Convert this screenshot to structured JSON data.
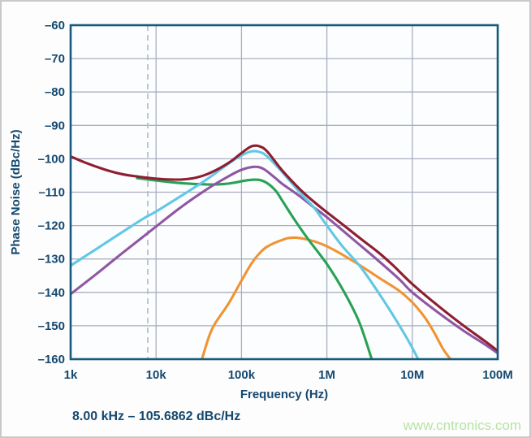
{
  "page": {
    "watermark": "www.cntronics.com"
  },
  "style": {
    "text_color": "#14486f",
    "border_color": "#15597c",
    "grid_color": "#a9afbe",
    "marker_line_color": "#b4b8bf",
    "watermark_color": "#b7e3a4",
    "plot_background": "#fcfdfe"
  },
  "chart_data": {
    "type": "line",
    "title": "",
    "xlabel": "Frequency (Hz)",
    "ylabel": "Phase Noise (dBc/Hz)",
    "x_scale": "log",
    "xlim": [
      1000,
      100000000
    ],
    "ylim": [
      -160,
      -60
    ],
    "grid": true,
    "legend": "none",
    "x_ticks": [
      {
        "value": 1000,
        "label": "1k"
      },
      {
        "value": 10000,
        "label": "10k"
      },
      {
        "value": 100000,
        "label": "100k"
      },
      {
        "value": 1000000,
        "label": "1M"
      },
      {
        "value": 10000000,
        "label": "10M"
      },
      {
        "value": 100000000,
        "label": "100M"
      }
    ],
    "y_ticks": [
      {
        "value": -60,
        "label": "–60"
      },
      {
        "value": -70,
        "label": "–70"
      },
      {
        "value": -80,
        "label": "–80"
      },
      {
        "value": -90,
        "label": "–90"
      },
      {
        "value": -100,
        "label": "–100"
      },
      {
        "value": -110,
        "label": "–110"
      },
      {
        "value": -120,
        "label": "–120"
      },
      {
        "value": -130,
        "label": "–130"
      },
      {
        "value": -140,
        "label": "–140"
      },
      {
        "value": -150,
        "label": "–150"
      },
      {
        "value": -160,
        "label": "–160"
      }
    ],
    "marker": {
      "frequency_hz": 8000,
      "label": "8.00 kHz – 105.6862 dBc/Hz"
    },
    "series": [
      {
        "name": "orange",
        "color": "#f09433",
        "points": [
          [
            34000,
            -160.5
          ],
          [
            42000,
            -153
          ],
          [
            50000,
            -149
          ],
          [
            70000,
            -143.5
          ],
          [
            100000,
            -136.5
          ],
          [
            130000,
            -131.5
          ],
          [
            160000,
            -128.5
          ],
          [
            200000,
            -126.3
          ],
          [
            300000,
            -124.3
          ],
          [
            400000,
            -123.6
          ],
          [
            600000,
            -124.2
          ],
          [
            1000000,
            -126.2
          ],
          [
            2000000,
            -130.5
          ],
          [
            4000000,
            -135.5
          ],
          [
            7000000,
            -139.5
          ],
          [
            10000000,
            -143
          ],
          [
            14000000,
            -147.5
          ],
          [
            18000000,
            -152
          ],
          [
            23000000,
            -157
          ],
          [
            29000000,
            -160.5
          ]
        ]
      },
      {
        "name": "green",
        "color": "#28a155",
        "points": [
          [
            6000,
            -105.8
          ],
          [
            10000,
            -106.5
          ],
          [
            20000,
            -107.3
          ],
          [
            40000,
            -107.7
          ],
          [
            60000,
            -107.6
          ],
          [
            80000,
            -107.2
          ],
          [
            120000,
            -106.4
          ],
          [
            160000,
            -106.3
          ],
          [
            200000,
            -107.3
          ],
          [
            250000,
            -109.5
          ],
          [
            300000,
            -112.5
          ],
          [
            400000,
            -117.5
          ],
          [
            600000,
            -124
          ],
          [
            1000000,
            -131.5
          ],
          [
            1600000,
            -140
          ],
          [
            2400000,
            -149
          ],
          [
            3400000,
            -160.5
          ]
        ]
      },
      {
        "name": "purple",
        "color": "#8f57a3",
        "points": [
          [
            1000,
            -140.5
          ],
          [
            2000,
            -134.5
          ],
          [
            4000,
            -128.3
          ],
          [
            7000,
            -123.4
          ],
          [
            10000,
            -120.3
          ],
          [
            20000,
            -114.3
          ],
          [
            40000,
            -109
          ],
          [
            70000,
            -105.3
          ],
          [
            100000,
            -103.3
          ],
          [
            140000,
            -102.4
          ],
          [
            180000,
            -103
          ],
          [
            250000,
            -105.8
          ],
          [
            300000,
            -107.5
          ],
          [
            500000,
            -111.5
          ],
          [
            700000,
            -114.5
          ],
          [
            1000000,
            -117.5
          ],
          [
            2000000,
            -124
          ],
          [
            4000000,
            -130.5
          ],
          [
            7000000,
            -136
          ],
          [
            10000000,
            -140
          ],
          [
            20000000,
            -146
          ],
          [
            40000000,
            -151.5
          ],
          [
            70000000,
            -155.5
          ],
          [
            100000000,
            -158.2
          ]
        ]
      },
      {
        "name": "light_blue",
        "color": "#62c7e5",
        "points": [
          [
            1000,
            -132
          ],
          [
            2000,
            -127
          ],
          [
            4000,
            -122
          ],
          [
            7000,
            -118
          ],
          [
            10000,
            -115.8
          ],
          [
            20000,
            -111
          ],
          [
            40000,
            -106
          ],
          [
            70000,
            -101.5
          ],
          [
            100000,
            -99
          ],
          [
            130000,
            -97.8
          ],
          [
            160000,
            -97.9
          ],
          [
            200000,
            -99.3
          ],
          [
            300000,
            -104
          ],
          [
            500000,
            -110.5
          ],
          [
            700000,
            -114.5
          ],
          [
            1000000,
            -120
          ],
          [
            1500000,
            -126
          ],
          [
            2500000,
            -132.5
          ],
          [
            4000000,
            -140
          ],
          [
            6000000,
            -147
          ],
          [
            9000000,
            -154.5
          ],
          [
            12000000,
            -160.5
          ]
        ]
      },
      {
        "name": "dark_red",
        "color": "#8e1e30",
        "points": [
          [
            1000,
            -99.3
          ],
          [
            1500,
            -101.2
          ],
          [
            2500,
            -103.2
          ],
          [
            4000,
            -104.6
          ],
          [
            6000,
            -105.3
          ],
          [
            8000,
            -105.7
          ],
          [
            12000,
            -106.1
          ],
          [
            20000,
            -106.2
          ],
          [
            30000,
            -105.6
          ],
          [
            45000,
            -104
          ],
          [
            70000,
            -101.3
          ],
          [
            100000,
            -98.3
          ],
          [
            130000,
            -96.3
          ],
          [
            160000,
            -96.2
          ],
          [
            200000,
            -97.8
          ],
          [
            300000,
            -103.5
          ],
          [
            500000,
            -109.5
          ],
          [
            700000,
            -112.8
          ],
          [
            1000000,
            -116
          ],
          [
            1500000,
            -119.5
          ],
          [
            2500000,
            -124
          ],
          [
            4000000,
            -128
          ],
          [
            6000000,
            -132
          ],
          [
            10000000,
            -137.5
          ],
          [
            20000000,
            -144
          ],
          [
            40000000,
            -150
          ],
          [
            70000000,
            -154.5
          ],
          [
            100000000,
            -157.5
          ]
        ]
      }
    ]
  }
}
